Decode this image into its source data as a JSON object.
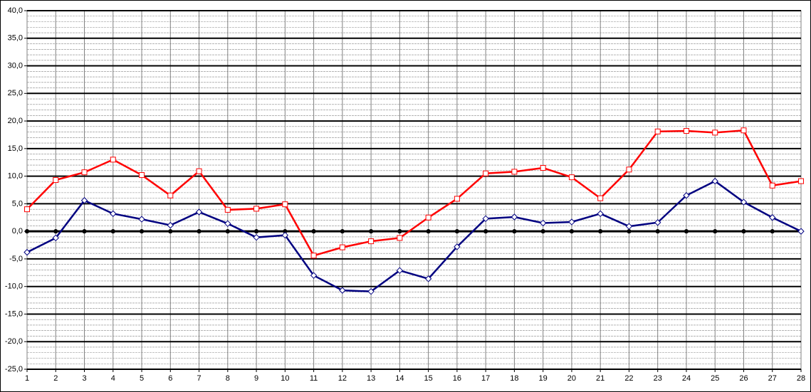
{
  "chart_data": {
    "type": "line",
    "x": [
      1,
      2,
      3,
      4,
      5,
      6,
      7,
      8,
      9,
      10,
      11,
      12,
      13,
      14,
      15,
      16,
      17,
      18,
      19,
      20,
      21,
      22,
      23,
      24,
      25,
      26,
      27,
      28
    ],
    "xlim": [
      1,
      28
    ],
    "xticks": [
      1,
      2,
      3,
      4,
      5,
      6,
      7,
      8,
      9,
      10,
      11,
      12,
      13,
      14,
      15,
      16,
      17,
      18,
      19,
      20,
      21,
      22,
      23,
      24,
      25,
      26,
      27,
      28
    ],
    "ylim": [
      -25,
      40
    ],
    "yticks": [
      {
        "value": -25,
        "label": "-25,0"
      },
      {
        "value": -20,
        "label": "-20,0"
      },
      {
        "value": -15,
        "label": "-15,0"
      },
      {
        "value": -10,
        "label": "-10,0"
      },
      {
        "value": -5,
        "label": "-5,0"
      },
      {
        "value": 0,
        "label": "0,0"
      },
      {
        "value": 5,
        "label": "5,0"
      },
      {
        "value": 10,
        "label": "10,0"
      },
      {
        "value": 15,
        "label": "15,0"
      },
      {
        "value": 20,
        "label": "20,0"
      },
      {
        "value": 25,
        "label": "25,0"
      },
      {
        "value": 30,
        "label": "30,0"
      },
      {
        "value": 35,
        "label": "35,0"
      },
      {
        "value": 40,
        "label": "40,0"
      }
    ],
    "grid": true,
    "series": [
      {
        "color": "#000000",
        "marker": "circle",
        "values": [
          0,
          0,
          0,
          0,
          0,
          0,
          0,
          0,
          0,
          0,
          0,
          0,
          0,
          0,
          0,
          0,
          0,
          0,
          0,
          0,
          0,
          0,
          0,
          0,
          0,
          0,
          0,
          0
        ]
      },
      {
        "color": "#000080",
        "marker": "diamond",
        "values": [
          -3.8,
          -1.2,
          5.6,
          3.2,
          2.2,
          1.1,
          3.5,
          1.4,
          -1.1,
          -0.7,
          -8.0,
          -10.7,
          -10.9,
          -7.1,
          -8.6,
          -2.8,
          2.3,
          2.6,
          1.5,
          1.7,
          3.2,
          0.9,
          1.6,
          6.5,
          9.1,
          5.3,
          2.5,
          0.0
        ]
      },
      {
        "color": "#ff0000",
        "marker": "square",
        "values": [
          4.0,
          9.3,
          10.7,
          13.0,
          10.2,
          6.5,
          10.9,
          3.9,
          4.1,
          4.9,
          -4.4,
          -2.9,
          -1.8,
          -1.2,
          2.5,
          5.9,
          10.5,
          10.8,
          11.5,
          9.8,
          6.0,
          11.2,
          18.1,
          18.2,
          17.9,
          18.3,
          8.3,
          9.1
        ]
      }
    ]
  }
}
